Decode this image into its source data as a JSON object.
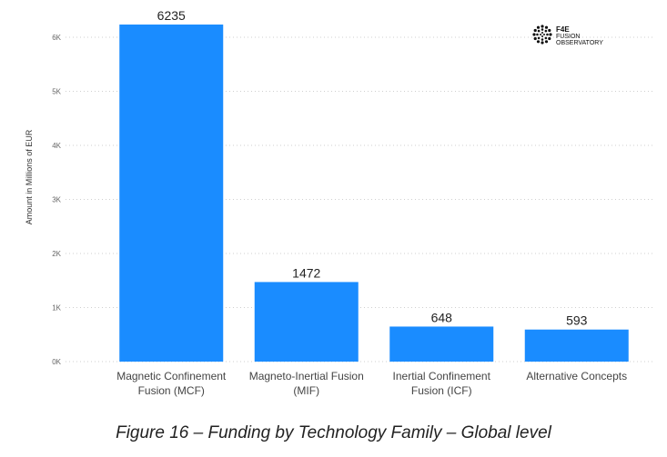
{
  "chart_data": {
    "type": "bar",
    "categories": [
      [
        "Magnetic Confinement",
        "Fusion (MCF)"
      ],
      [
        "Magneto-Inertial Fusion",
        "(MIF)"
      ],
      [
        "Inertial Confinement",
        "Fusion (ICF)"
      ],
      [
        "Alternative Concepts"
      ]
    ],
    "values": [
      6235,
      1472,
      648,
      593
    ],
    "data_labels": [
      "6235",
      "1472",
      "648",
      "593"
    ],
    "ylabel": "Amount in Millions of EUR",
    "ylim": [
      0,
      6000
    ],
    "yticks": [
      0,
      1000,
      2000,
      3000,
      4000,
      5000,
      6000
    ],
    "ytick_labels": [
      "0K",
      "1K",
      "2K",
      "3K",
      "4K",
      "5K",
      "6K"
    ],
    "grid": true,
    "bar_color": "#1a8cff"
  },
  "logo": {
    "line1": "F4E",
    "line2": "FUSION",
    "line3": "OBSERVATORY"
  },
  "caption": "Figure 16 – Funding by Technology Family – Global level"
}
